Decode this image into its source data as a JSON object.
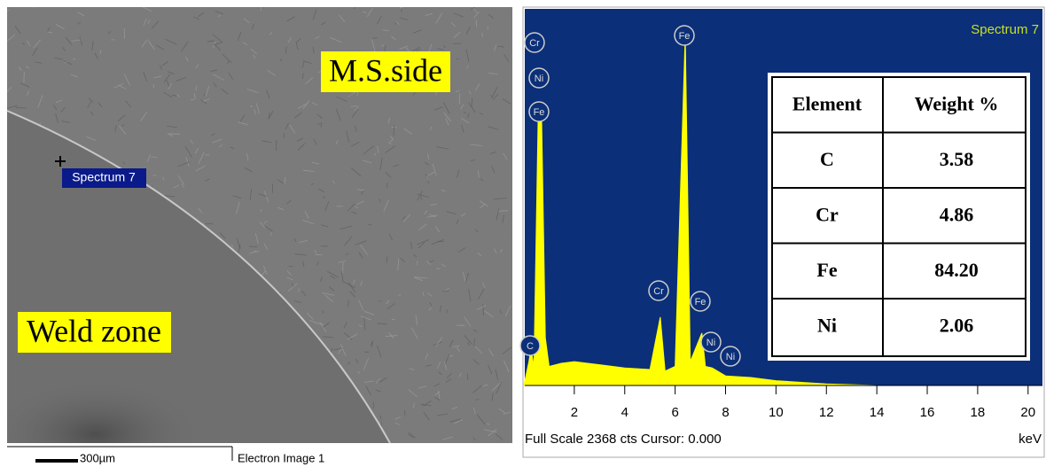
{
  "sem_image": {
    "labels": [
      "M.S.side",
      "Weld zone",
      "Spectrum 7"
    ],
    "scale_bar": "300µm",
    "caption": "Electron Image 1"
  },
  "chart_data": {
    "type": "area",
    "title": "Spectrum 7",
    "x": [
      0,
      0.2,
      0.28,
      0.4,
      0.57,
      0.7,
      0.85,
      1.0,
      1.5,
      2,
      3,
      4,
      5,
      5.41,
      5.6,
      6.0,
      6.4,
      6.6,
      7.06,
      7.2,
      7.47,
      8.0,
      9,
      10,
      12,
      14,
      20.5
    ],
    "values": [
      0,
      150,
      230,
      120,
      1720,
      1700,
      300,
      120,
      140,
      150,
      130,
      110,
      100,
      430,
      90,
      120,
      2200,
      150,
      330,
      120,
      110,
      60,
      50,
      30,
      10,
      0,
      0
    ],
    "color": "#ffff00",
    "background": "#0b2f78",
    "xlim": [
      0,
      20.5
    ],
    "ylim": [
      0,
      2368
    ],
    "xticks": [
      2,
      4,
      6,
      8,
      10,
      12,
      14,
      16,
      18,
      20
    ],
    "x_label": "keV",
    "footer": "Full Scale 2368 cts Cursor: 0.000",
    "peak_labels": [
      "C",
      "Cr",
      "Ni",
      "Fe",
      "Cr",
      "Fe",
      "Fe",
      "Ni",
      "Ni"
    ]
  },
  "table": {
    "header": [
      "Element",
      "Weight %"
    ],
    "rows": [
      [
        "C",
        "3.58"
      ],
      [
        "Cr",
        "4.86"
      ],
      [
        "Fe",
        "84.20"
      ],
      [
        "Ni",
        "2.06"
      ]
    ]
  }
}
